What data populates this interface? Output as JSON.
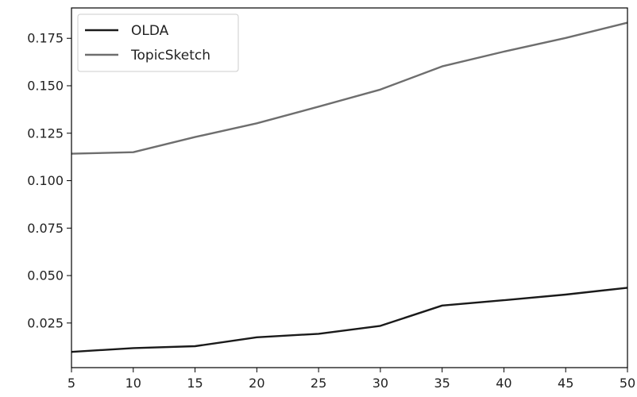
{
  "chart_data": {
    "type": "line",
    "title": "",
    "xlabel": "",
    "ylabel": "",
    "x": [
      5,
      10,
      15,
      20,
      25,
      30,
      35,
      40,
      45,
      50
    ],
    "xlim": [
      5,
      50
    ],
    "ylim": [
      0.0015,
      0.191
    ],
    "xticks": [
      5,
      10,
      15,
      20,
      25,
      30,
      35,
      40,
      45,
      50
    ],
    "yticks": [
      0.025,
      0.05,
      0.075,
      0.1,
      0.125,
      0.15,
      0.175
    ],
    "xtick_labels": [
      "5",
      "10",
      "15",
      "20",
      "25",
      "30",
      "35",
      "40",
      "45",
      "50"
    ],
    "ytick_labels": [
      "0.025",
      "0.050",
      "0.075",
      "0.100",
      "0.125",
      "0.150",
      "0.175"
    ],
    "grid": false,
    "legend_position": "top-left",
    "series": [
      {
        "name": "OLDA",
        "color": "#1a1a1a",
        "values": [
          0.0098,
          0.0118,
          0.0128,
          0.0175,
          0.0193,
          0.0235,
          0.0342,
          0.037,
          0.04,
          0.0436
        ]
      },
      {
        "name": "TopicSketch",
        "color": "#6e6e6e",
        "values": [
          0.1142,
          0.115,
          0.123,
          0.1302,
          0.139,
          0.148,
          0.1602,
          0.168,
          0.1752,
          0.1832
        ]
      }
    ]
  }
}
